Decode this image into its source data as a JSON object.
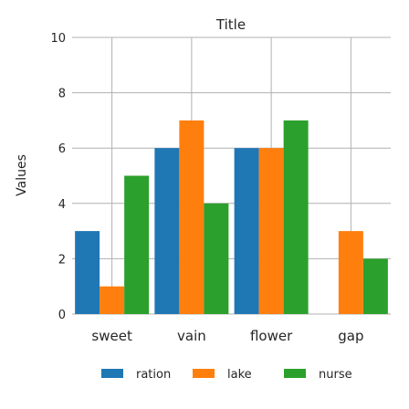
{
  "chart_data": {
    "type": "bar",
    "title": "Title",
    "xlabel": "",
    "ylabel": "Values",
    "categories": [
      "sweet",
      "vain",
      "flower",
      "gap"
    ],
    "series": [
      {
        "name": "ration",
        "color": "#1f77b4",
        "values": [
          3,
          6,
          6,
          0
        ]
      },
      {
        "name": "lake",
        "color": "#ff7f0e",
        "values": [
          1,
          7,
          6,
          3
        ]
      },
      {
        "name": "nurse",
        "color": "#2ca02c",
        "values": [
          5,
          4,
          7,
          2
        ]
      }
    ],
    "ylim": [
      0,
      10
    ],
    "yticks": [
      "0",
      "2",
      "4",
      "6",
      "8",
      "10"
    ],
    "grid": true,
    "legend_position": "bottom"
  }
}
